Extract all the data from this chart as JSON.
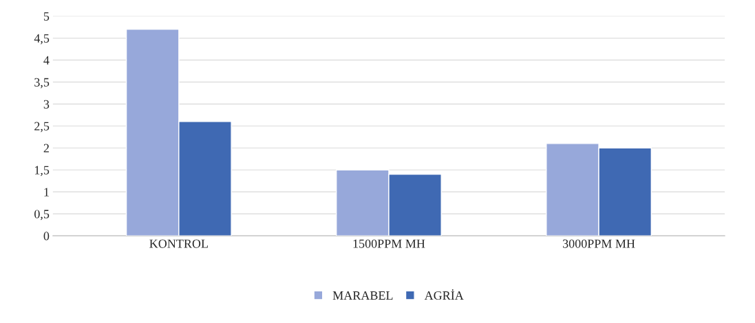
{
  "chart_data": {
    "type": "bar",
    "categories": [
      "KONTROL",
      "1500PPM MH",
      "3000PPM MH"
    ],
    "series": [
      {
        "name": "MARABEL",
        "color": "#97a8da",
        "values": [
          4.7,
          1.5,
          2.1
        ]
      },
      {
        "name": "AGRİA",
        "color": "#3f69b3",
        "values": [
          2.6,
          1.4,
          2.0
        ]
      }
    ],
    "ylim": [
      0,
      5
    ],
    "yticks": [
      0,
      {
        "value": 0.5,
        "label": "0,5"
      },
      1,
      {
        "value": 1.5,
        "label": "1,5"
      },
      2,
      {
        "value": 2.5,
        "label": "2,5"
      },
      3,
      {
        "value": 3.5,
        "label": "3,5"
      },
      4,
      {
        "value": 4.5,
        "label": "4,5"
      },
      5
    ],
    "grid": "y",
    "legend": "bottom"
  }
}
